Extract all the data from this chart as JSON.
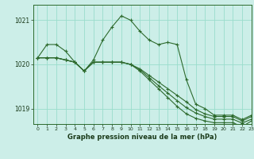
{
  "title": "Graphe pression niveau de la mer (hPa)",
  "bg_color": "#cceee8",
  "grid_color": "#99ddcc",
  "line_color": "#2d6a2d",
  "xlim": [
    -0.5,
    23
  ],
  "ylim": [
    1018.65,
    1021.35
  ],
  "yticks": [
    1019,
    1020,
    1021
  ],
  "xticks": [
    0,
    1,
    2,
    3,
    4,
    5,
    6,
    7,
    8,
    9,
    10,
    11,
    12,
    13,
    14,
    15,
    16,
    17,
    18,
    19,
    20,
    21,
    22,
    23
  ],
  "lines": [
    [
      1020.15,
      1020.45,
      1020.45,
      1020.3,
      1020.05,
      1019.85,
      1020.1,
      1020.55,
      1020.85,
      1021.1,
      1021.0,
      1020.75,
      1020.55,
      1020.45,
      1020.5,
      1020.45,
      1019.65,
      1019.1,
      1019.0,
      1018.85,
      1018.85,
      1018.85,
      1018.75,
      1018.85
    ],
    [
      1020.15,
      1020.15,
      1020.15,
      1020.1,
      1020.05,
      1019.85,
      1020.05,
      1020.05,
      1020.05,
      1020.05,
      1020.0,
      1019.9,
      1019.75,
      1019.6,
      1019.45,
      1019.3,
      1019.15,
      1018.98,
      1018.88,
      1018.82,
      1018.82,
      1018.82,
      1018.72,
      1018.82
    ],
    [
      1020.15,
      1020.15,
      1020.15,
      1020.1,
      1020.05,
      1019.85,
      1020.05,
      1020.05,
      1020.05,
      1020.05,
      1020.0,
      1019.88,
      1019.7,
      1019.52,
      1019.35,
      1019.18,
      1019.02,
      1018.9,
      1018.82,
      1018.76,
      1018.76,
      1018.76,
      1018.67,
      1018.76
    ],
    [
      1020.15,
      1020.15,
      1020.15,
      1020.1,
      1020.05,
      1019.85,
      1020.05,
      1020.05,
      1020.05,
      1020.05,
      1020.0,
      1019.85,
      1019.65,
      1019.45,
      1019.25,
      1019.05,
      1018.88,
      1018.78,
      1018.72,
      1018.68,
      1018.68,
      1018.68,
      1018.59,
      1018.72
    ]
  ]
}
